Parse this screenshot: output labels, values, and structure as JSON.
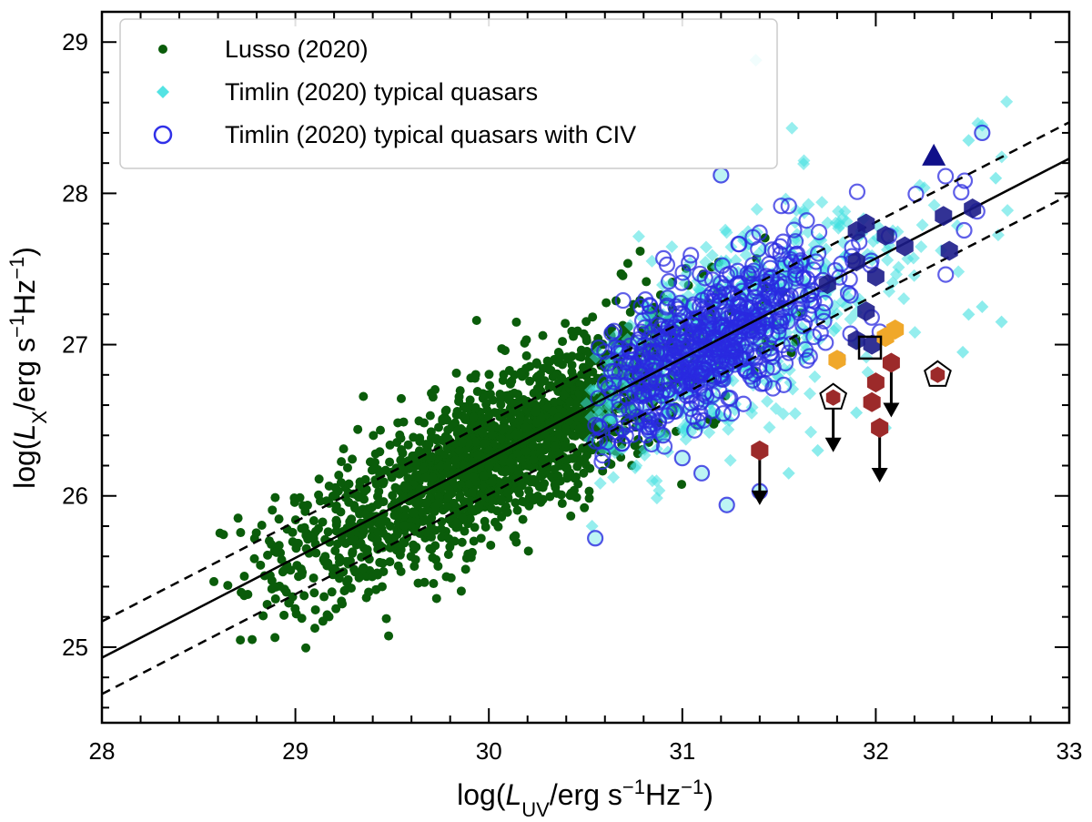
{
  "chart_data": {
    "type": "scatter",
    "title": "",
    "xlim": [
      28,
      33
    ],
    "ylim": [
      24.5,
      29.2
    ],
    "xticks": [
      28,
      29,
      30,
      31,
      32,
      33
    ],
    "yticks": [
      25,
      26,
      27,
      28,
      29
    ],
    "xlabel": {
      "prefix": "log(",
      "sym": "L",
      "sub": "UV",
      "unit": "/erg s",
      "exp1": "−1",
      "mid": "Hz",
      "exp2": "−1",
      "suffix": ")"
    },
    "ylabel": {
      "prefix": "log(",
      "sym": "L",
      "sub": "X",
      "unit": "/erg s",
      "exp1": "−1",
      "mid": "Hz",
      "exp2": "−1",
      "suffix": ")"
    },
    "legend": {
      "position": "top-left",
      "entries": [
        {
          "label": "Lusso (2020)",
          "marker": "dot",
          "color": "#0a5c0a"
        },
        {
          "label": "Timlin (2020) typical quasars",
          "marker": "diamond",
          "color": "#40e0e0"
        },
        {
          "label": "Timlin (2020) typical quasars with CIV",
          "marker": "open-circle",
          "color": "#2a2ae0"
        }
      ]
    },
    "relation": {
      "slope": 0.66,
      "x0": 28,
      "y0": 24.93,
      "scatter": 0.24
    },
    "clouds": [
      {
        "name": "Lusso (2020)",
        "color": "#0a5c0a",
        "n": 1900,
        "x_range": [
          28.55,
          32.55
        ],
        "x_mean": 30.05,
        "x_sd": 0.55,
        "y_slope": 0.66,
        "y_intercept": 24.93,
        "y_sd": 0.25
      },
      {
        "name": "Timlin (2020) typical quasars",
        "color": "#40e0e0",
        "n": 650,
        "x_range": [
          30.5,
          32.7
        ],
        "x_mean": 31.2,
        "x_sd": 0.42,
        "y_slope": 0.66,
        "y_intercept": 24.93,
        "y_sd": 0.3
      },
      {
        "name": "Timlin (2020) typical quasars with CIV",
        "color": "#2a2ae0",
        "n": 620,
        "x_range": [
          30.55,
          32.55
        ],
        "x_mean": 31.15,
        "x_sd": 0.32,
        "y_slope": 0.66,
        "y_intercept": 24.93,
        "y_sd": 0.24
      }
    ],
    "outlier_points": {
      "diamonds": [
        [
          31.38,
          28.88
        ],
        [
          32.55,
          28.45
        ],
        [
          32.48,
          28.35
        ],
        [
          32.62,
          28.1
        ],
        [
          32.65,
          27.15
        ],
        [
          32.55,
          27.25
        ],
        [
          32.45,
          26.95
        ],
        [
          31.55,
          26.15
        ],
        [
          32.05,
          26.45
        ],
        [
          31.9,
          26.55
        ],
        [
          31.7,
          26.3
        ],
        [
          32.48,
          27.2
        ]
      ],
      "circles": [
        [
          30.55,
          25.72
        ],
        [
          31.23,
          25.94
        ],
        [
          31.4,
          26.03
        ],
        [
          31.1,
          26.15
        ],
        [
          30.9,
          26.4
        ],
        [
          31.2,
          28.12
        ],
        [
          32.55,
          28.4
        ],
        [
          31.0,
          26.25
        ]
      ]
    },
    "highlighted_quasars": {
      "navy_hexagons": [
        [
          32.35,
          27.85
        ],
        [
          32.5,
          27.9
        ],
        [
          32.38,
          27.62
        ],
        [
          32.15,
          27.65
        ],
        [
          32.05,
          27.72
        ],
        [
          31.95,
          27.8
        ],
        [
          31.9,
          27.75
        ],
        [
          32.0,
          27.45
        ],
        [
          31.9,
          27.55
        ],
        [
          31.75,
          27.4
        ],
        [
          31.95,
          27.22
        ],
        [
          31.9,
          27.03
        ],
        [
          31.98,
          27.0
        ]
      ],
      "orange_hexagons": [
        [
          32.1,
          27.1
        ],
        [
          32.05,
          27.05
        ],
        [
          31.8,
          26.9
        ]
      ],
      "red_hexagons": [
        [
          31.4,
          26.3
        ],
        [
          32.08,
          26.88
        ],
        [
          32.0,
          26.75
        ],
        [
          31.98,
          26.62
        ],
        [
          32.02,
          26.45
        ]
      ],
      "red_pentagons": [
        [
          31.78,
          26.65
        ],
        [
          32.32,
          26.8
        ]
      ],
      "navy_triangles": [
        [
          32.3,
          28.25
        ]
      ],
      "open_squares": [
        [
          31.97,
          26.98
        ]
      ],
      "upper_limits": [
        [
          31.4,
          26.3
        ],
        [
          31.78,
          26.65
        ],
        [
          32.08,
          26.88
        ],
        [
          32.02,
          26.45
        ]
      ]
    }
  }
}
